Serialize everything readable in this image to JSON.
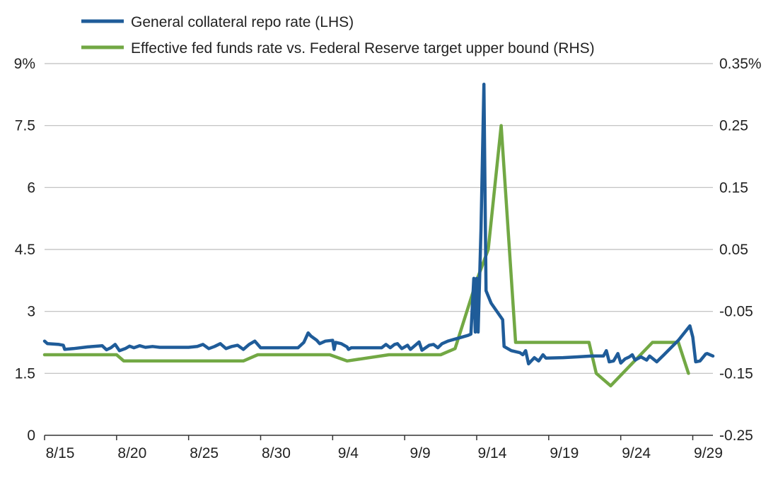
{
  "chart_data": {
    "type": "line",
    "title": "",
    "xlabel": "",
    "ylabel_left": "",
    "ylabel_right": "",
    "legend_position": "top-left",
    "grid": "horizontal",
    "colors": {
      "gc_repo": "#1f5c99",
      "effr": "#72a844"
    },
    "x_range": [
      1,
      47.4
    ],
    "x_ticks": [
      {
        "x": 1,
        "label": "8/15"
      },
      {
        "x": 6,
        "label": "8/20"
      },
      {
        "x": 11,
        "label": "8/25"
      },
      {
        "x": 16,
        "label": "8/30"
      },
      {
        "x": 21,
        "label": "9/4"
      },
      {
        "x": 26,
        "label": "9/9"
      },
      {
        "x": 31,
        "label": "9/14"
      },
      {
        "x": 36,
        "label": "9/19"
      },
      {
        "x": 41,
        "label": "9/24"
      },
      {
        "x": 46,
        "label": "9/29"
      }
    ],
    "y_left": {
      "range": [
        0,
        9
      ],
      "ticks": [
        0,
        1.5,
        3,
        4.5,
        6,
        7.5,
        9
      ],
      "tick_labels": [
        "0",
        "1.5",
        "3",
        "4.5",
        "6",
        "7.5",
        "9%"
      ]
    },
    "y_right": {
      "range": [
        -0.25,
        0.35
      ],
      "ticks": [
        -0.25,
        -0.15,
        -0.05,
        0.05,
        0.15,
        0.25,
        0.35
      ],
      "tick_labels": [
        "-0.25",
        "-0.15",
        "-0.05",
        "0.05",
        "0.15",
        "0.25",
        "0.35%"
      ]
    },
    "series": [
      {
        "name": "General collateral repo rate (LHS)",
        "axis": "left",
        "color": "#1f5c99",
        "points": [
          [
            1.0,
            2.28
          ],
          [
            1.2,
            2.22
          ],
          [
            2.0,
            2.2
          ],
          [
            2.3,
            2.18
          ],
          [
            2.4,
            2.08
          ],
          [
            3.0,
            2.1
          ],
          [
            4.0,
            2.14
          ],
          [
            5.0,
            2.17
          ],
          [
            5.3,
            2.07
          ],
          [
            5.6,
            2.12
          ],
          [
            5.9,
            2.2
          ],
          [
            6.2,
            2.05
          ],
          [
            6.6,
            2.1
          ],
          [
            6.9,
            2.16
          ],
          [
            7.2,
            2.12
          ],
          [
            7.6,
            2.17
          ],
          [
            8.0,
            2.13
          ],
          [
            8.5,
            2.15
          ],
          [
            9.0,
            2.13
          ],
          [
            10.0,
            2.13
          ],
          [
            11.0,
            2.13
          ],
          [
            11.6,
            2.15
          ],
          [
            12.0,
            2.2
          ],
          [
            12.4,
            2.1
          ],
          [
            12.8,
            2.15
          ],
          [
            13.2,
            2.22
          ],
          [
            13.6,
            2.1
          ],
          [
            14.0,
            2.15
          ],
          [
            14.4,
            2.18
          ],
          [
            14.8,
            2.08
          ],
          [
            15.2,
            2.2
          ],
          [
            15.6,
            2.28
          ],
          [
            16.0,
            2.12
          ],
          [
            17.0,
            2.12
          ],
          [
            18.0,
            2.12
          ],
          [
            18.6,
            2.12
          ],
          [
            19.0,
            2.25
          ],
          [
            19.3,
            2.48
          ],
          [
            19.5,
            2.4
          ],
          [
            19.9,
            2.3
          ],
          [
            20.1,
            2.22
          ],
          [
            20.5,
            2.28
          ],
          [
            21.0,
            2.3
          ],
          [
            21.1,
            2.08
          ],
          [
            21.2,
            2.25
          ],
          [
            21.6,
            2.22
          ],
          [
            22.0,
            2.14
          ],
          [
            22.1,
            2.08
          ],
          [
            22.3,
            2.12
          ],
          [
            23.0,
            2.12
          ],
          [
            24.0,
            2.12
          ],
          [
            24.4,
            2.12
          ],
          [
            24.7,
            2.2
          ],
          [
            25.0,
            2.12
          ],
          [
            25.3,
            2.2
          ],
          [
            25.5,
            2.22
          ],
          [
            25.8,
            2.1
          ],
          [
            26.0,
            2.14
          ],
          [
            26.2,
            2.18
          ],
          [
            26.4,
            2.08
          ],
          [
            26.8,
            2.2
          ],
          [
            27.0,
            2.26
          ],
          [
            27.2,
            2.06
          ],
          [
            27.7,
            2.18
          ],
          [
            28.0,
            2.2
          ],
          [
            28.3,
            2.12
          ],
          [
            28.6,
            2.22
          ],
          [
            29.0,
            2.28
          ],
          [
            29.5,
            2.33
          ],
          [
            30.0,
            2.38
          ],
          [
            30.4,
            2.42
          ],
          [
            30.6,
            2.45
          ],
          [
            30.8,
            3.8
          ],
          [
            30.9,
            2.5
          ],
          [
            31.0,
            3.8
          ],
          [
            31.1,
            2.5
          ],
          [
            31.3,
            5.0
          ],
          [
            31.5,
            8.5
          ],
          [
            31.65,
            3.5
          ],
          [
            32.0,
            3.2
          ],
          [
            32.8,
            2.8
          ],
          [
            32.9,
            2.15
          ],
          [
            33.4,
            2.05
          ],
          [
            34.0,
            2.0
          ],
          [
            34.2,
            1.95
          ],
          [
            34.4,
            2.05
          ],
          [
            34.6,
            1.73
          ],
          [
            35.0,
            1.88
          ],
          [
            35.3,
            1.8
          ],
          [
            35.6,
            1.95
          ],
          [
            35.8,
            1.87
          ],
          [
            37.0,
            1.88
          ],
          [
            38.0,
            1.9
          ],
          [
            39.0,
            1.92
          ],
          [
            39.8,
            1.92
          ],
          [
            40.0,
            2.05
          ],
          [
            40.2,
            1.78
          ],
          [
            40.5,
            1.8
          ],
          [
            40.8,
            1.98
          ],
          [
            41.0,
            1.75
          ],
          [
            41.3,
            1.85
          ],
          [
            41.6,
            1.9
          ],
          [
            41.8,
            1.95
          ],
          [
            42.0,
            1.82
          ],
          [
            42.4,
            1.9
          ],
          [
            42.8,
            1.82
          ],
          [
            43.0,
            1.92
          ],
          [
            43.5,
            1.78
          ],
          [
            44.0,
            1.95
          ],
          [
            45.0,
            2.3
          ],
          [
            45.8,
            2.65
          ],
          [
            46.0,
            2.38
          ],
          [
            46.2,
            1.78
          ],
          [
            46.5,
            1.8
          ],
          [
            46.9,
            1.97
          ],
          [
            47.0,
            1.98
          ],
          [
            47.4,
            1.92
          ]
        ]
      },
      {
        "name": "Effective fed funds rate vs. Federal Reserve target upper bound (RHS)",
        "axis": "right",
        "color": "#72a844",
        "points": [
          [
            1.0,
            -0.12
          ],
          [
            6.0,
            -0.12
          ],
          [
            6.5,
            -0.13
          ],
          [
            9.0,
            -0.13
          ],
          [
            14.8,
            -0.13
          ],
          [
            15.8,
            -0.12
          ],
          [
            20.8,
            -0.12
          ],
          [
            22.0,
            -0.13
          ],
          [
            24.9,
            -0.12
          ],
          [
            28.5,
            -0.12
          ],
          [
            29.5,
            -0.11
          ],
          [
            31.0,
            0.0
          ],
          [
            31.8,
            0.05
          ],
          [
            32.7,
            0.25
          ],
          [
            33.7,
            -0.1
          ],
          [
            38.8,
            -0.1
          ],
          [
            39.3,
            -0.15
          ],
          [
            40.3,
            -0.17
          ],
          [
            43.2,
            -0.1
          ],
          [
            45.0,
            -0.1
          ],
          [
            45.7,
            -0.15
          ]
        ]
      }
    ]
  }
}
